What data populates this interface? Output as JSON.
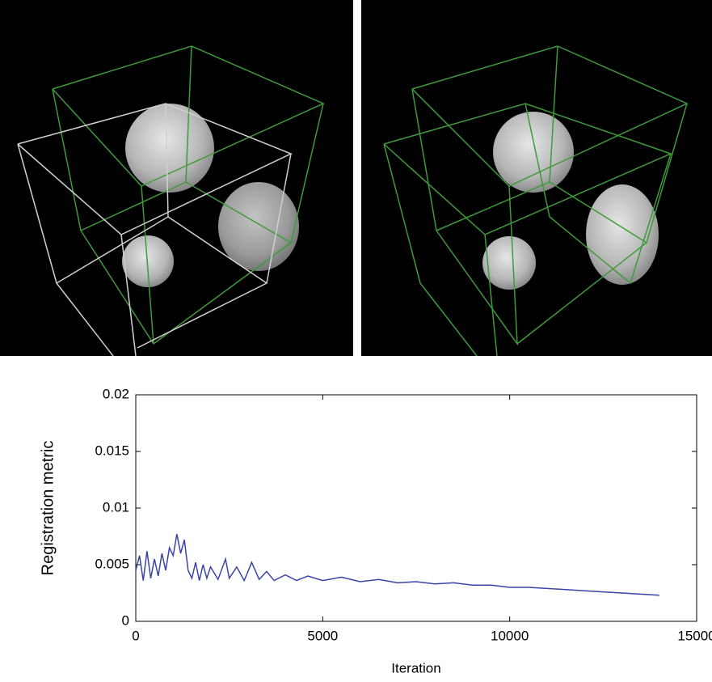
{
  "chart_data": {
    "type": "line",
    "xlabel": "Iteration",
    "ylabel": "Registration metric",
    "x": [
      0,
      100,
      200,
      300,
      400,
      500,
      600,
      700,
      800,
      900,
      1000,
      1100,
      1200,
      1300,
      1400,
      1500,
      1600,
      1700,
      1800,
      1900,
      2000,
      2200,
      2400,
      2500,
      2700,
      2900,
      3100,
      3300,
      3500,
      3700,
      4000,
      4300,
      4600,
      5000,
      5500,
      6000,
      6500,
      7000,
      7500,
      8000,
      8500,
      9000,
      9500,
      10000,
      10500,
      11000,
      11500,
      12000,
      12500,
      13000,
      13500,
      14000
    ],
    "values": [
      0.0045,
      0.0058,
      0.0036,
      0.0062,
      0.0038,
      0.0055,
      0.004,
      0.006,
      0.0045,
      0.0065,
      0.0058,
      0.0077,
      0.006,
      0.0072,
      0.0045,
      0.0038,
      0.0052,
      0.0036,
      0.005,
      0.0038,
      0.0048,
      0.0037,
      0.0055,
      0.0038,
      0.0048,
      0.0036,
      0.0052,
      0.0037,
      0.0044,
      0.0036,
      0.0041,
      0.0036,
      0.004,
      0.0036,
      0.0039,
      0.0035,
      0.0037,
      0.0034,
      0.0035,
      0.0033,
      0.0034,
      0.0032,
      0.0032,
      0.003,
      0.003,
      0.0029,
      0.0028,
      0.0027,
      0.0026,
      0.0025,
      0.0024,
      0.0023
    ],
    "color": "#3a44a8",
    "xlim": [
      0,
      15000
    ],
    "xticks": [
      0,
      5000,
      10000,
      15000
    ],
    "ylim": [
      0,
      0.02
    ],
    "yticks": [
      0,
      0.005,
      0.01,
      0.015,
      0.02
    ]
  }
}
